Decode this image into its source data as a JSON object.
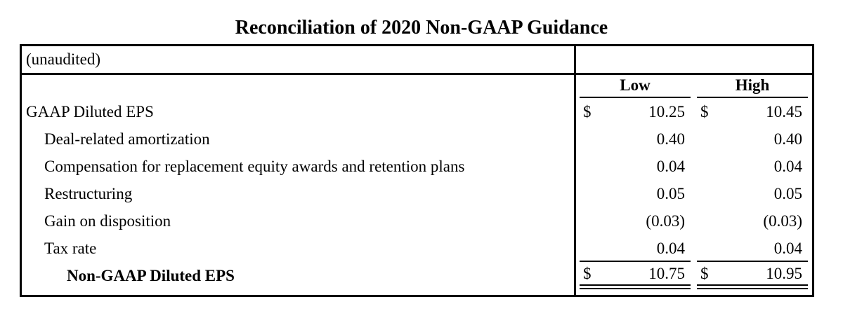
{
  "title": "Reconciliation of 2020 Non-GAAP Guidance",
  "table": {
    "unaudited_label": "(unaudited)",
    "currency_symbol": "$",
    "columns": [
      "Low",
      "High"
    ],
    "rows": [
      {
        "label": "GAAP Diluted EPS",
        "low": "10.25",
        "high": "10.45"
      },
      {
        "label": "Deal-related amortization",
        "low": "0.40",
        "high": "0.40"
      },
      {
        "label": "Compensation for replacement equity awards and retention plans",
        "low": "0.04",
        "high": "0.04"
      },
      {
        "label": "Restructuring",
        "low": "0.05",
        "high": "0.05"
      },
      {
        "label": "Gain on disposition",
        "low": "(0.03)",
        "high": "(0.03)"
      },
      {
        "label": "Tax rate",
        "low": "0.04",
        "high": "0.04"
      },
      {
        "label": "Non-GAAP Diluted EPS",
        "low": "10.75",
        "high": "10.95"
      }
    ]
  },
  "chart_data": {
    "type": "table",
    "title": "Reconciliation of 2020 Non-GAAP Guidance",
    "columns": [
      "",
      "Low",
      "High"
    ],
    "rows": [
      [
        "GAAP Diluted EPS",
        10.25,
        10.45
      ],
      [
        "Deal-related amortization",
        0.4,
        0.4
      ],
      [
        "Compensation for replacement equity awards and retention plans",
        0.04,
        0.04
      ],
      [
        "Restructuring",
        0.05,
        0.05
      ],
      [
        "Gain on disposition",
        -0.03,
        -0.03
      ],
      [
        "Tax rate",
        0.04,
        0.04
      ],
      [
        "Non-GAAP Diluted EPS",
        10.75,
        10.95
      ]
    ]
  }
}
